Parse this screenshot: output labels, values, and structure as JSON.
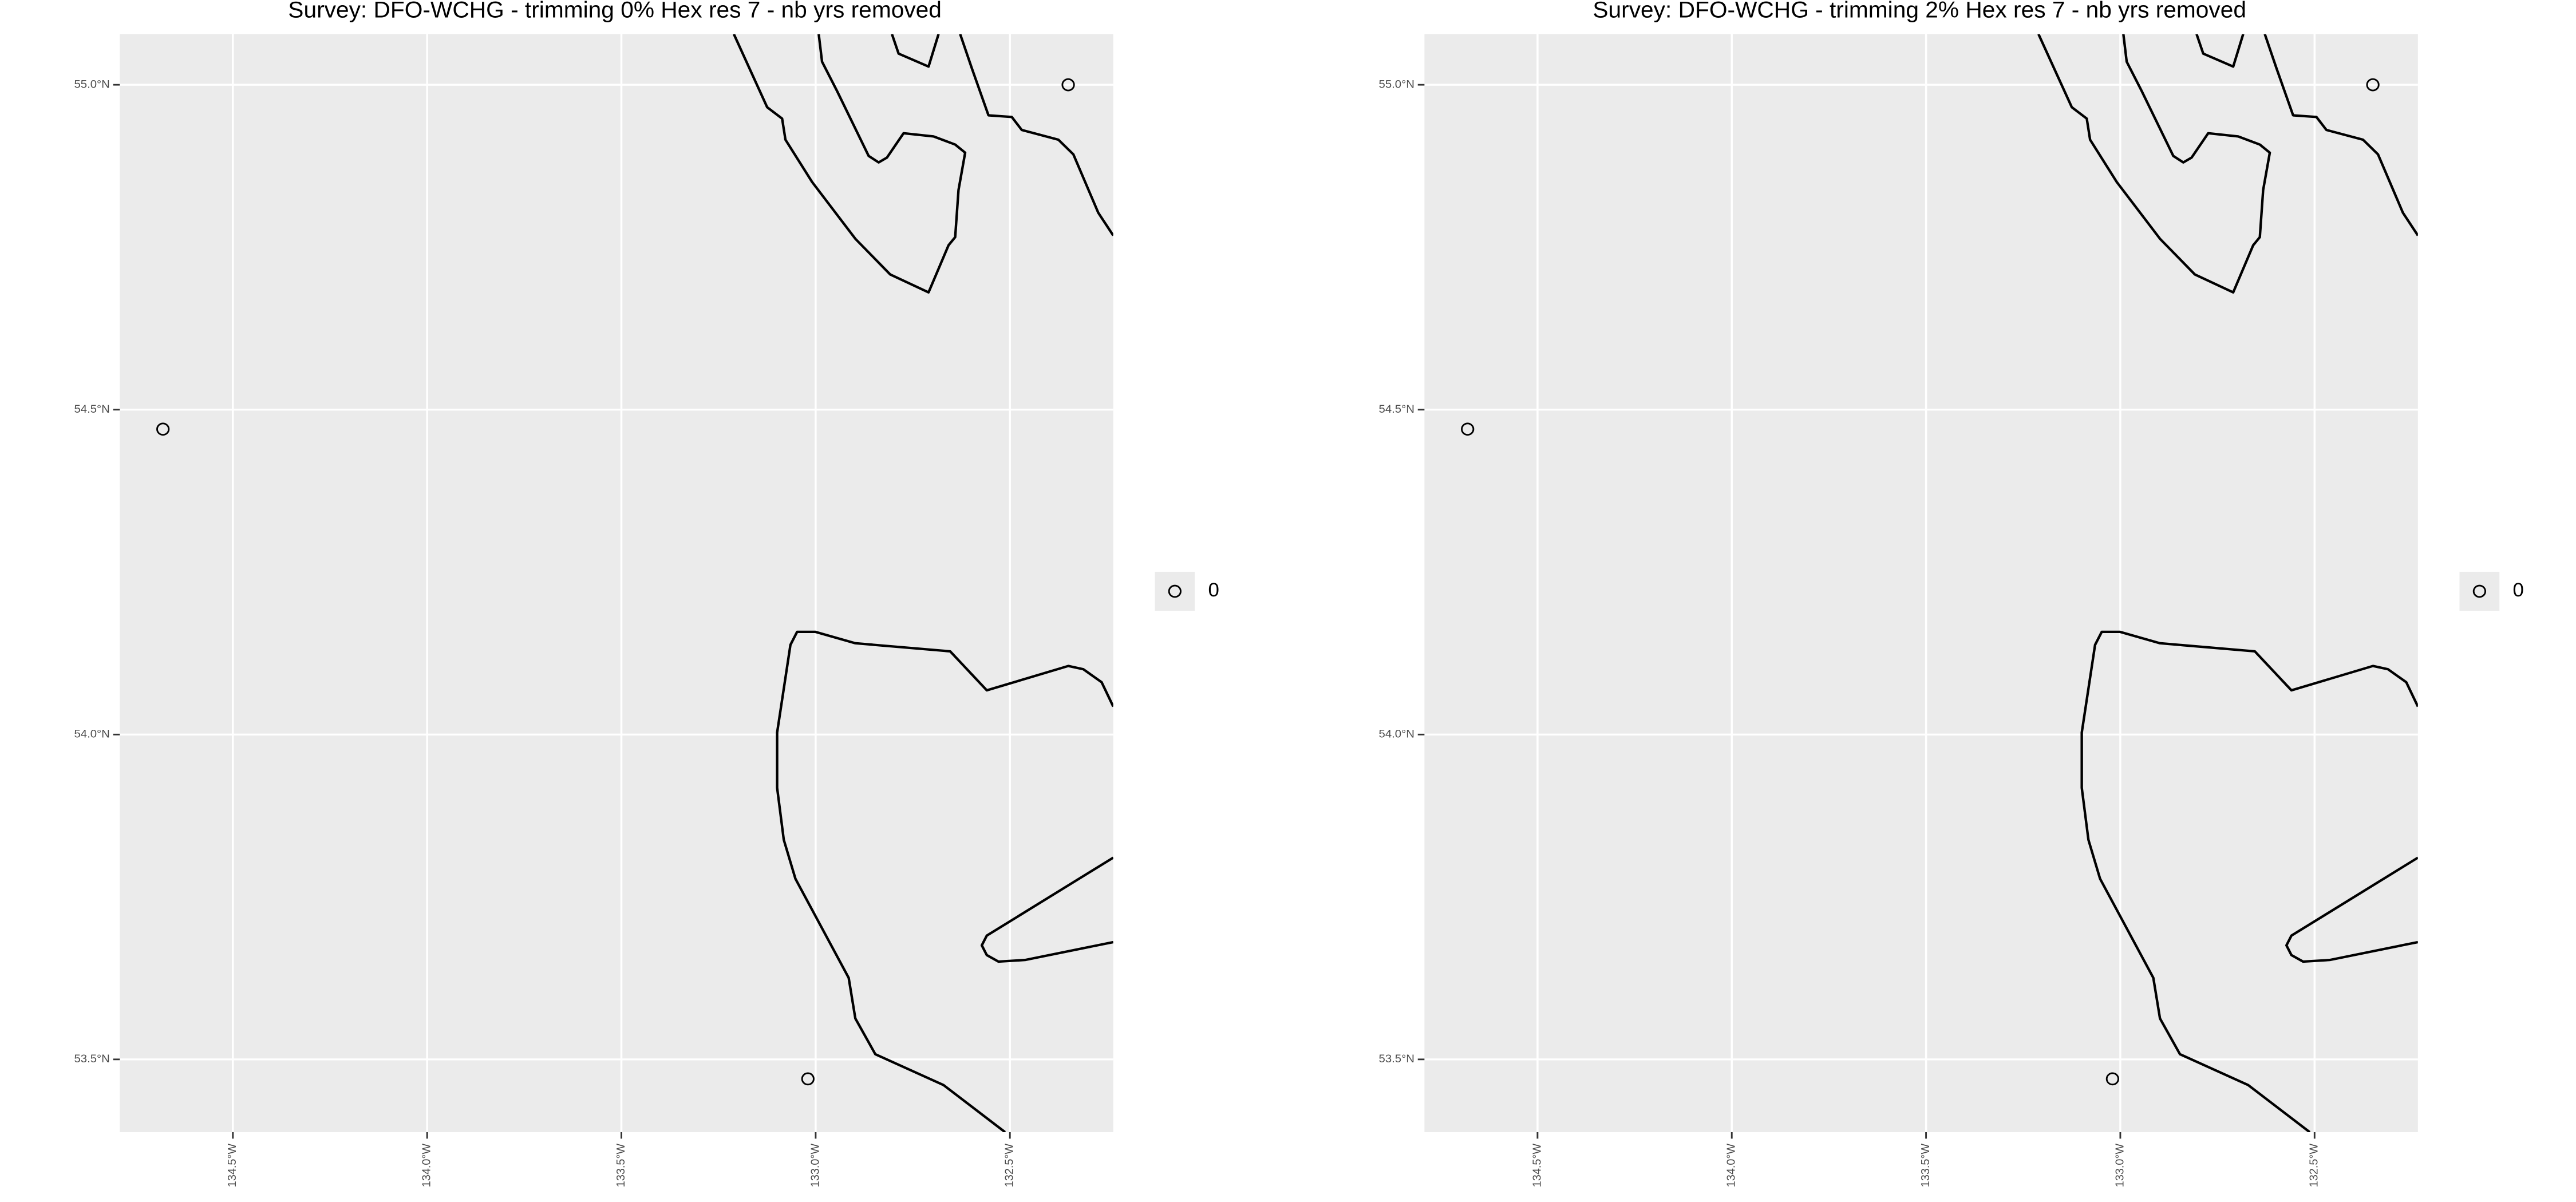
{
  "chart_data": [
    {
      "type": "scatter",
      "title": "Survey: DFO-WCHG - trimming 0% Hex res 7 - nb yrs removed",
      "xlim": [
        -134.791,
        -132.234
      ],
      "ylim": [
        53.388,
        55.078
      ],
      "xticks": [
        {
          "value": -134.5,
          "label": "134.5°W"
        },
        {
          "value": -134.0,
          "label": "134.0°W"
        },
        {
          "value": -133.5,
          "label": "133.5°W"
        },
        {
          "value": -133.0,
          "label": "133.0°W"
        },
        {
          "value": -132.5,
          "label": "132.5°W"
        }
      ],
      "yticks": [
        {
          "value": 53.5,
          "label": "53.5°N"
        },
        {
          "value": 54.0,
          "label": "54.0°N"
        },
        {
          "value": 54.5,
          "label": "54.5°N"
        },
        {
          "value": 55.0,
          "label": "55.0°N"
        }
      ],
      "grid": true,
      "legend": "right",
      "series": [
        {
          "name": "0",
          "color": "#000000",
          "x": [
            -134.68,
            -132.35,
            -133.02
          ],
          "values": [
            54.47,
            55.0,
            53.47
          ]
        }
      ]
    },
    {
      "type": "scatter",
      "title": "Survey: DFO-WCHG - trimming 2% Hex res 7 - nb yrs removed",
      "xlim": [
        -134.791,
        -132.234
      ],
      "ylim": [
        53.388,
        55.078
      ],
      "xticks": [
        {
          "value": -134.5,
          "label": "134.5°W"
        },
        {
          "value": -134.0,
          "label": "134.0°W"
        },
        {
          "value": -133.5,
          "label": "133.5°W"
        },
        {
          "value": -133.0,
          "label": "133.0°W"
        },
        {
          "value": -132.5,
          "label": "132.5°W"
        }
      ],
      "yticks": [
        {
          "value": 53.5,
          "label": "53.5°N"
        },
        {
          "value": 54.0,
          "label": "54.0°N"
        },
        {
          "value": 54.5,
          "label": "54.5°N"
        },
        {
          "value": 55.0,
          "label": "55.0°N"
        }
      ],
      "grid": true,
      "legend": "right",
      "series": [
        {
          "name": "0",
          "color": "#000000",
          "x": [
            -134.68,
            -132.35,
            -133.02
          ],
          "values": [
            54.47,
            55.0,
            53.47
          ]
        }
      ]
    }
  ]
}
